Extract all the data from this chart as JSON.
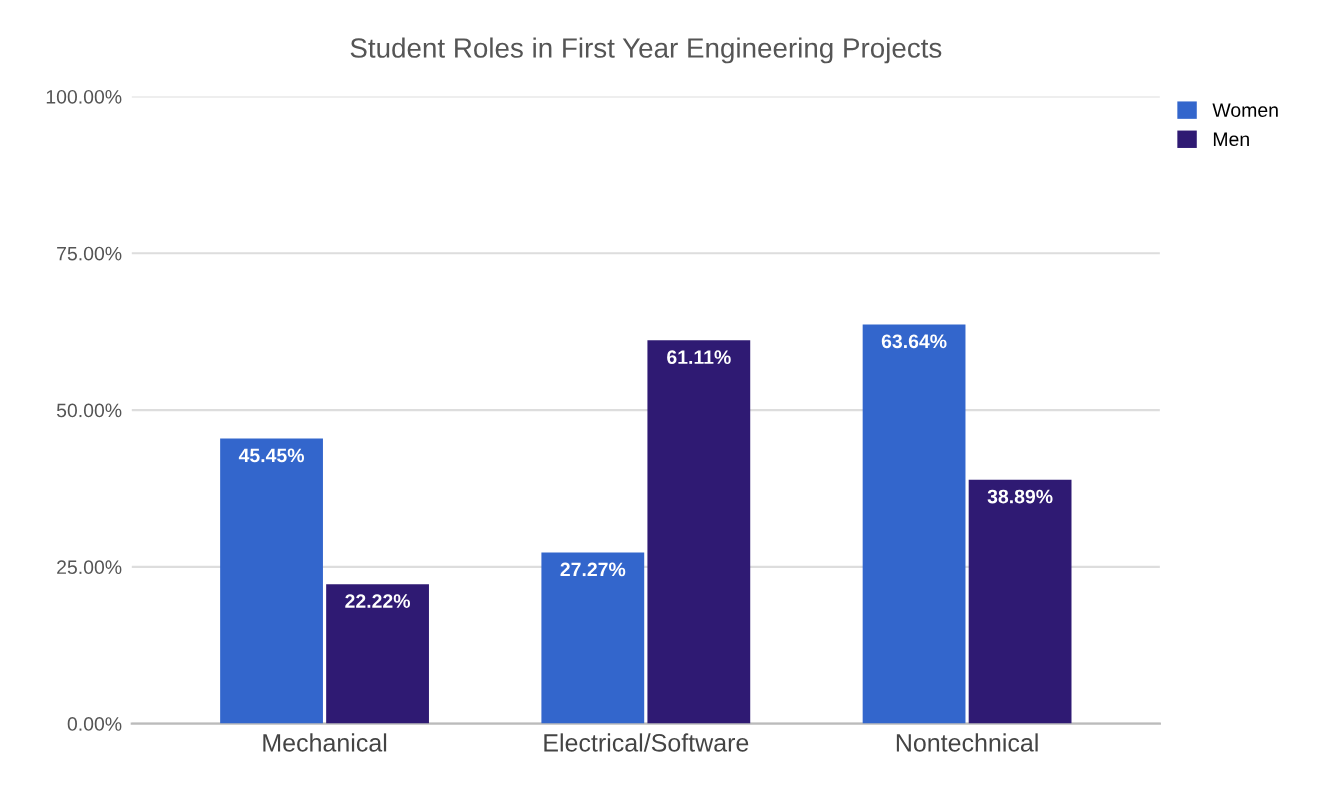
{
  "chart_data": {
    "type": "bar",
    "title": "Student Roles in First Year Engineering Projects",
    "categories": [
      "Mechanical",
      "Electrical/Software",
      "Nontechnical"
    ],
    "series": [
      {
        "name": "Women",
        "color": "#3366cc",
        "values": [
          45.45,
          27.27,
          63.64
        ],
        "value_labels": [
          "45.45%",
          "27.27%",
          "63.64%"
        ]
      },
      {
        "name": "Men",
        "color": "#2f1a73",
        "values": [
          22.22,
          61.11,
          38.89
        ],
        "value_labels": [
          "22.22%",
          "61.11%",
          "38.89%"
        ]
      }
    ],
    "ylim": [
      0,
      100
    ],
    "yticks": [
      {
        "value": 0,
        "label": "0.00%"
      },
      {
        "value": 25,
        "label": "25.00%"
      },
      {
        "value": 50,
        "label": "50.00%"
      },
      {
        "value": 75,
        "label": "75.00%"
      },
      {
        "value": 100,
        "label": "100.00%"
      }
    ],
    "grid": "y",
    "legend": "top right"
  }
}
